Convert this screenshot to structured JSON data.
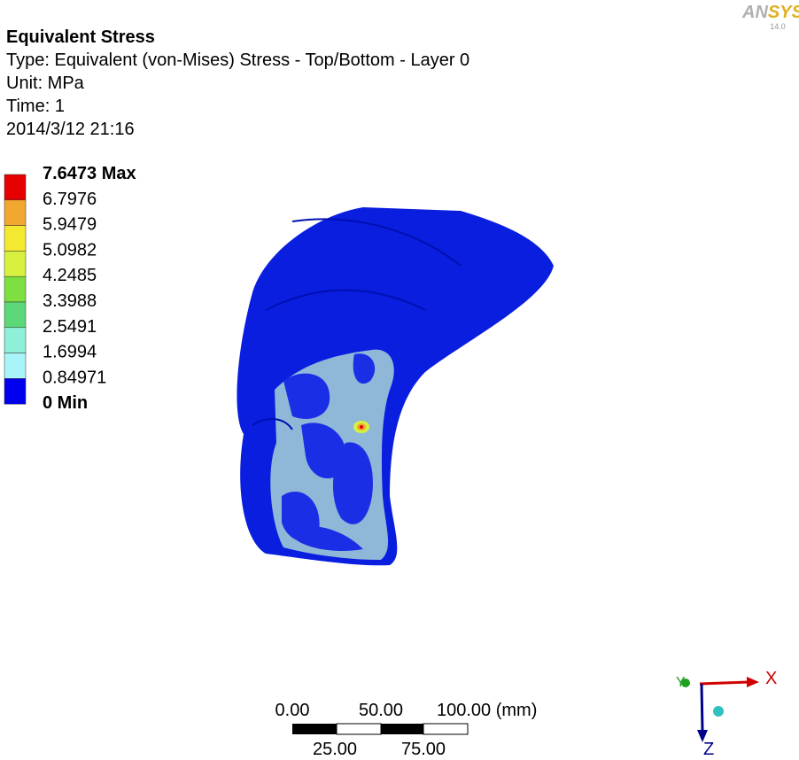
{
  "logo": {
    "brand_a": "AN",
    "brand_b": "SYS",
    "version": "14.0"
  },
  "header": {
    "title": "Equivalent Stress",
    "lines": [
      "Type: Equivalent (von-Mises) Stress - Top/Bottom - Layer 0",
      "Unit: MPa",
      "Time: 1",
      "2014/3/12 21:16"
    ]
  },
  "legend": {
    "labels": [
      "7.6473 Max",
      "6.7976",
      "5.9479",
      "5.0982",
      "4.2485",
      "3.3988",
      "2.5491",
      "1.6994",
      "0.84971",
      "0 Min"
    ],
    "colors": [
      "#e60000",
      "#f0a830",
      "#f5e830",
      "#d8f040",
      "#7ee040",
      "#5cd878",
      "#8ef0d8",
      "#a8f4f8",
      "#5ea4e6",
      "#0000ee"
    ]
  },
  "scale_bar": {
    "top_labels": [
      "0.00",
      "50.00",
      "100.00 (mm)"
    ],
    "bottom_labels": [
      "25.00",
      "75.00"
    ]
  },
  "triad": {
    "x": "X",
    "y": "Y",
    "z": "Z"
  }
}
